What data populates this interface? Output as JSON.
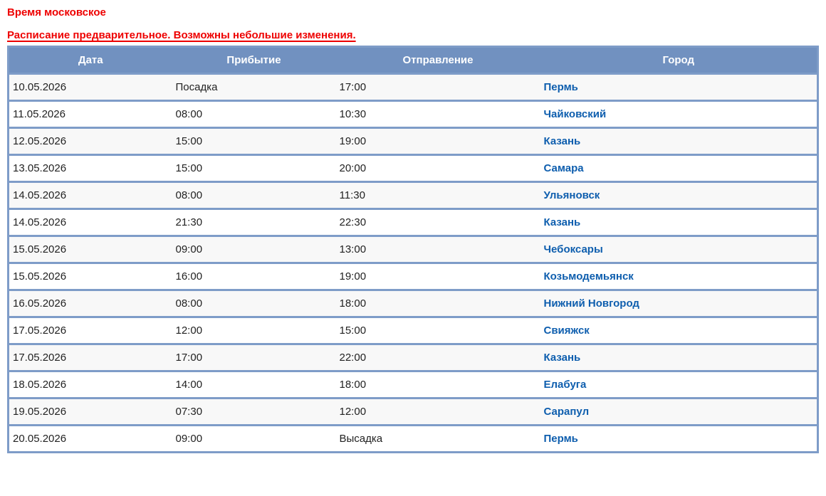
{
  "notices": {
    "timezone": "Время московское",
    "preliminary": "Расписание предварительное. Возможны небольшие изменения."
  },
  "table": {
    "headers": {
      "date": "Дата",
      "arrival": "Прибытие",
      "departure": "Отправление",
      "city": "Город"
    },
    "rows": [
      {
        "date": "10.05.2026",
        "arrival": "Посадка",
        "departure": "17:00",
        "city": "Пермь"
      },
      {
        "date": "11.05.2026",
        "arrival": "08:00",
        "departure": "10:30",
        "city": "Чайковский"
      },
      {
        "date": "12.05.2026",
        "arrival": "15:00",
        "departure": "19:00",
        "city": "Казань"
      },
      {
        "date": "13.05.2026",
        "arrival": "15:00",
        "departure": "20:00",
        "city": "Самара"
      },
      {
        "date": "14.05.2026",
        "arrival": "08:00",
        "departure": "11:30",
        "city": "Ульяновск"
      },
      {
        "date": "14.05.2026",
        "arrival": "21:30",
        "departure": "22:30",
        "city": "Казань"
      },
      {
        "date": "15.05.2026",
        "arrival": "09:00",
        "departure": "13:00",
        "city": "Чебоксары"
      },
      {
        "date": "15.05.2026",
        "arrival": "16:00",
        "departure": "19:00",
        "city": "Козьмодемьянск"
      },
      {
        "date": "16.05.2026",
        "arrival": "08:00",
        "departure": "18:00",
        "city": "Нижний Новгород"
      },
      {
        "date": "17.05.2026",
        "arrival": "12:00",
        "departure": "15:00",
        "city": "Свияжск"
      },
      {
        "date": "17.05.2026",
        "arrival": "17:00",
        "departure": "22:00",
        "city": "Казань"
      },
      {
        "date": "18.05.2026",
        "arrival": "14:00",
        "departure": "18:00",
        "city": "Елабуга"
      },
      {
        "date": "19.05.2026",
        "arrival": "07:30",
        "departure": "12:00",
        "city": "Сарапул"
      },
      {
        "date": "20.05.2026",
        "arrival": "09:00",
        "departure": "Высадка",
        "city": "Пермь"
      }
    ]
  },
  "colors": {
    "header_bg": "#7191c0",
    "table_border": "#7e9cc8",
    "notice_text": "#ee0000",
    "city_link": "#0e5eae",
    "row_alt_bg": "#f8f8f8",
    "cell_text": "#222222",
    "header_text": "#ffffff"
  }
}
